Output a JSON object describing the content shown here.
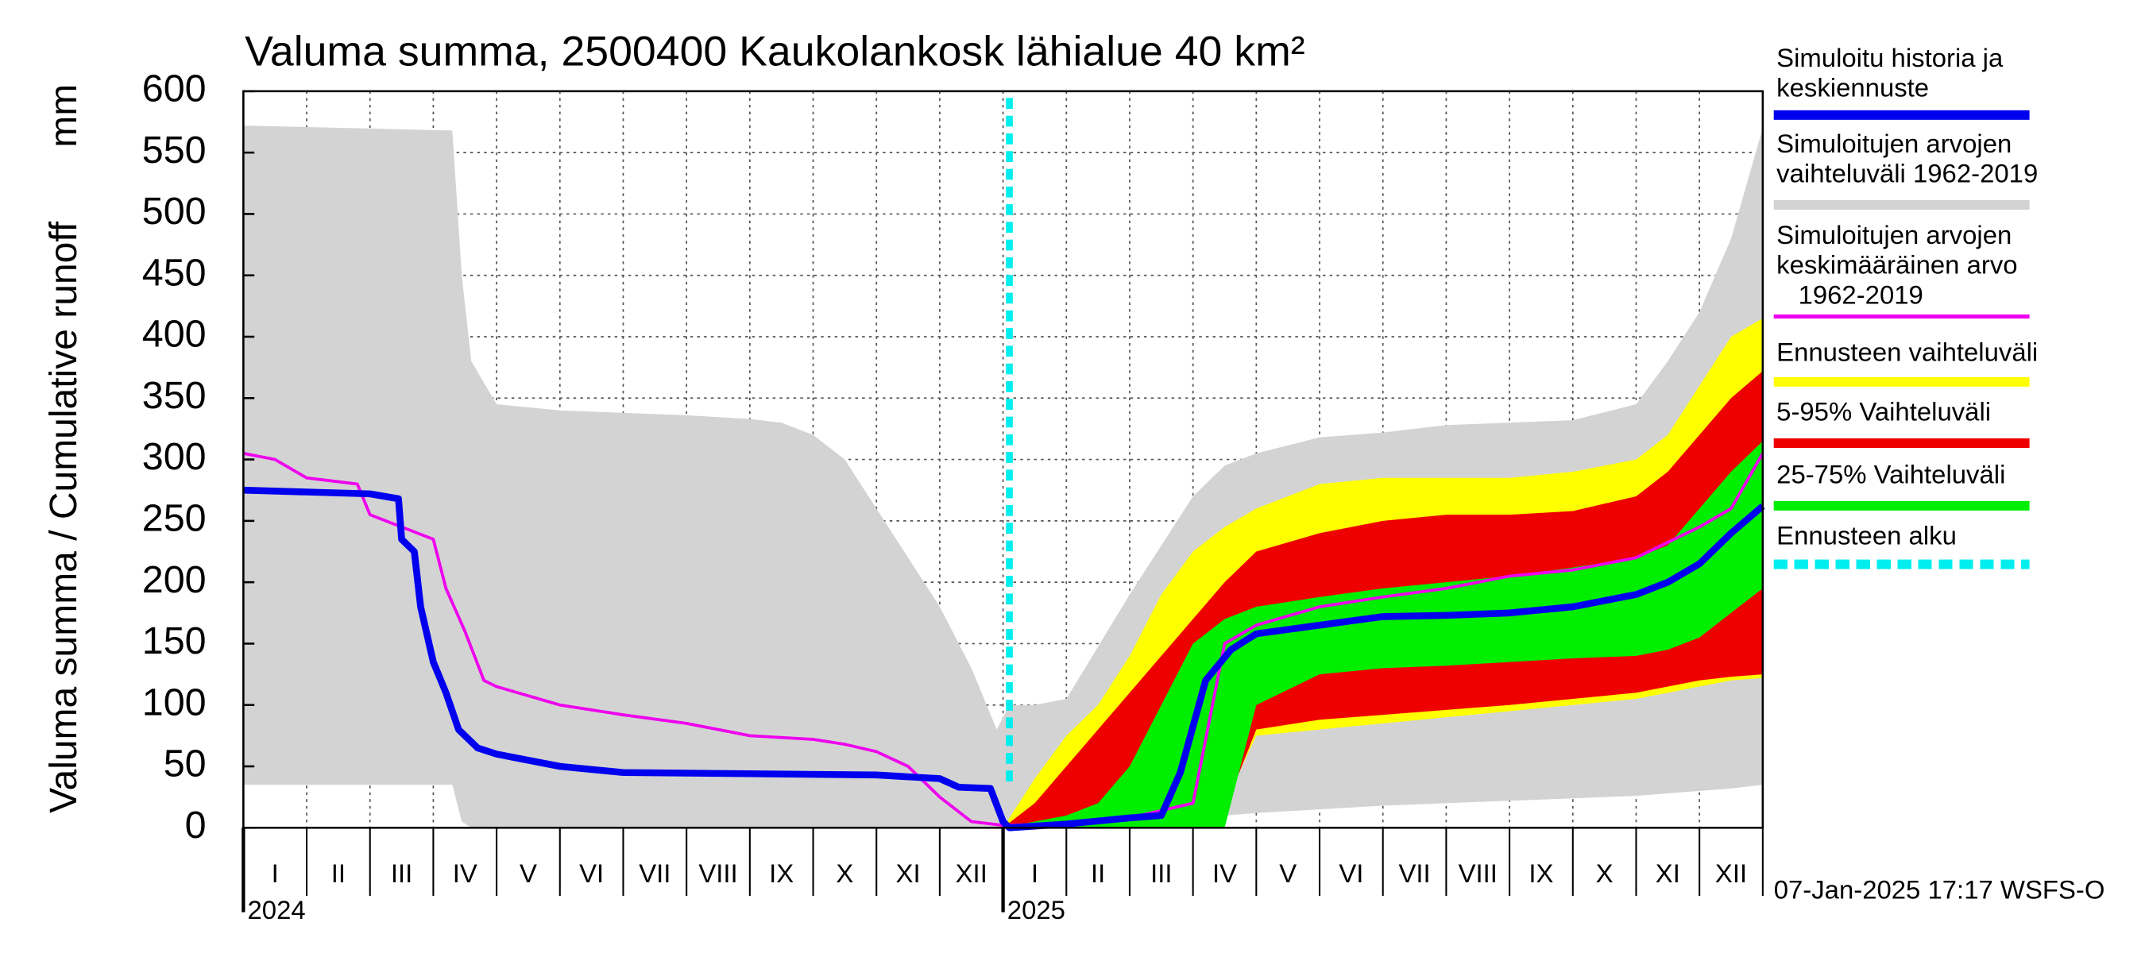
{
  "chart_data": {
    "type": "band-line",
    "title": "Valuma summa, 2500400 Kaukolankosk lähialue 40 km²",
    "ylabel": "Valuma summa / Cumulative runoff",
    "yunit": "mm",
    "footer": "07-Jan-2025 17:17 WSFS-O",
    "xlim": [
      0,
      24
    ],
    "xticks": [
      0,
      1,
      2,
      3,
      4,
      5,
      6,
      7,
      8,
      9,
      10,
      11,
      12,
      13,
      14,
      15,
      16,
      17,
      18,
      19,
      20,
      21,
      22,
      23,
      24
    ],
    "month_labels": [
      {
        "value": 0.5,
        "label": "I"
      },
      {
        "value": 1.5,
        "label": "II"
      },
      {
        "value": 2.5,
        "label": "III"
      },
      {
        "value": 3.5,
        "label": "IV"
      },
      {
        "value": 4.5,
        "label": "V"
      },
      {
        "value": 5.5,
        "label": "VI"
      },
      {
        "value": 6.5,
        "label": "VII"
      },
      {
        "value": 7.5,
        "label": "VIII"
      },
      {
        "value": 8.5,
        "label": "IX"
      },
      {
        "value": 9.5,
        "label": "X"
      },
      {
        "value": 10.5,
        "label": "XI"
      },
      {
        "value": 11.5,
        "label": "XII"
      },
      {
        "value": 12.5,
        "label": "I"
      },
      {
        "value": 13.5,
        "label": "II"
      },
      {
        "value": 14.5,
        "label": "III"
      },
      {
        "value": 15.5,
        "label": "IV"
      },
      {
        "value": 16.5,
        "label": "V"
      },
      {
        "value": 17.5,
        "label": "VI"
      },
      {
        "value": 18.5,
        "label": "VII"
      },
      {
        "value": 19.5,
        "label": "VIII"
      },
      {
        "value": 20.5,
        "label": "IX"
      },
      {
        "value": 21.5,
        "label": "X"
      },
      {
        "value": 22.5,
        "label": "XI"
      },
      {
        "value": 23.5,
        "label": "XII"
      }
    ],
    "year_labels": [
      {
        "value": 0,
        "label": "2024"
      },
      {
        "value": 12,
        "label": "2025"
      }
    ],
    "ylim": [
      0,
      600
    ],
    "yticks": [
      0,
      50,
      100,
      150,
      200,
      250,
      300,
      350,
      400,
      450,
      500,
      550,
      600
    ],
    "grid": true,
    "series": [
      {
        "name": "Simuloitu historia ja\nkeskiennuste",
        "color": "#0000ee",
        "kind": "line",
        "x": [
          0,
          2,
          2.45,
          2.5,
          2.7,
          2.8,
          3,
          3.2,
          3.4,
          3.7,
          4,
          5,
          6,
          8,
          10,
          11,
          11.3,
          11.8,
          12,
          12.1,
          13,
          14,
          14.5,
          14.8,
          15.2,
          15.6,
          16,
          17,
          18,
          19,
          20,
          21,
          22,
          22.5,
          23,
          23.5,
          24
        ],
        "values": [
          275,
          272,
          268,
          235,
          225,
          180,
          135,
          110,
          80,
          65,
          60,
          50,
          45,
          44,
          43,
          40,
          33,
          32,
          5,
          0,
          3,
          8,
          10,
          45,
          120,
          145,
          158,
          165,
          172,
          173,
          175,
          180,
          190,
          200,
          215,
          240,
          262
        ]
      },
      {
        "name": "Simuloitujen arvojen\nvaihteluväli 1962-2019",
        "color": "#d3d3d3",
        "kind": "band",
        "x": [
          0,
          3.3,
          3.45,
          3.6,
          4,
          5,
          6,
          7,
          8,
          8.5,
          9,
          9.5,
          10,
          10.5,
          11,
          11.5,
          11.9,
          12.1,
          12.5,
          13,
          14,
          14.5,
          15,
          15.5,
          16,
          17,
          18,
          19,
          20,
          21,
          22,
          22.5,
          23,
          23.5,
          24
        ],
        "high": [
          572,
          568,
          450,
          380,
          345,
          340,
          338,
          336,
          333,
          330,
          320,
          300,
          260,
          220,
          180,
          130,
          80,
          100,
          100,
          105,
          190,
          230,
          270,
          295,
          305,
          318,
          322,
          328,
          330,
          332,
          345,
          380,
          420,
          480,
          570
        ],
        "low": [
          35,
          35,
          5,
          0,
          0,
          0,
          0,
          0,
          0,
          0,
          0,
          0,
          0,
          0,
          0,
          0,
          0,
          0,
          0,
          0,
          0,
          0,
          5,
          10,
          12,
          15,
          18,
          20,
          22,
          24,
          26,
          28,
          30,
          32,
          35
        ]
      },
      {
        "name": "Simuloitujen arvojen\nkeskimääräinen arvo\n   1962-2019",
        "color": "#ee00ee",
        "kind": "line",
        "x": [
          0,
          0.5,
          1,
          1.8,
          2,
          2.5,
          3,
          3.2,
          3.5,
          3.8,
          4,
          5,
          6,
          7,
          8,
          9,
          9.5,
          10,
          10.5,
          11,
          11.5,
          12,
          13,
          14,
          15,
          15.5,
          16,
          17,
          18,
          19,
          20,
          21,
          22,
          23,
          23.5,
          24
        ],
        "values": [
          305,
          300,
          285,
          280,
          255,
          245,
          235,
          195,
          160,
          120,
          115,
          100,
          92,
          85,
          75,
          72,
          68,
          62,
          50,
          25,
          5,
          2,
          3,
          8,
          20,
          150,
          165,
          180,
          188,
          195,
          205,
          210,
          220,
          245,
          260,
          305
        ]
      },
      {
        "name": "Ennusteen vaihteluväli",
        "color": "#ffff00",
        "kind": "band",
        "x": [
          12,
          12.5,
          13,
          13.5,
          14,
          14.5,
          15,
          15.5,
          16,
          17,
          18,
          19,
          20,
          21,
          22,
          22.5,
          23,
          23.5,
          24
        ],
        "high": [
          0,
          40,
          75,
          100,
          140,
          190,
          225,
          245,
          260,
          280,
          285,
          285,
          285,
          290,
          300,
          320,
          360,
          400,
          415
        ],
        "low": [
          0,
          0,
          0,
          0,
          0,
          0,
          0,
          20,
          75,
          80,
          85,
          90,
          95,
          100,
          105,
          110,
          115,
          120,
          122
        ]
      },
      {
        "name": "5-95% Vaihteluväli",
        "color": "#ee0000",
        "kind": "band",
        "x": [
          12,
          12.5,
          13,
          13.5,
          14,
          14.5,
          15,
          15.5,
          16,
          17,
          18,
          19,
          20,
          21,
          22,
          22.5,
          23,
          23.5,
          24
        ],
        "high": [
          0,
          20,
          50,
          80,
          110,
          140,
          170,
          200,
          225,
          240,
          250,
          255,
          255,
          258,
          270,
          290,
          320,
          350,
          372
        ],
        "low": [
          0,
          0,
          0,
          0,
          0,
          0,
          0,
          15,
          80,
          88,
          92,
          96,
          100,
          105,
          110,
          115,
          120,
          123,
          125
        ]
      },
      {
        "name": "25-75% Vaihteluväli",
        "color": "#00ee00",
        "kind": "band",
        "x": [
          12,
          12.5,
          13,
          13.5,
          14,
          14.5,
          15,
          15.5,
          16,
          17,
          18,
          19,
          20,
          21,
          22,
          22.5,
          23,
          23.5,
          24
        ],
        "high": [
          0,
          5,
          10,
          20,
          50,
          100,
          150,
          170,
          180,
          188,
          195,
          200,
          205,
          212,
          220,
          230,
          260,
          290,
          315
        ],
        "low": [
          0,
          0,
          0,
          0,
          0,
          0,
          0,
          0,
          100,
          125,
          130,
          132,
          135,
          138,
          140,
          145,
          155,
          175,
          195
        ]
      },
      {
        "name": "Ennusteen alku",
        "color": "#00eeee",
        "kind": "vline",
        "x": [
          12.1
        ]
      }
    ]
  }
}
